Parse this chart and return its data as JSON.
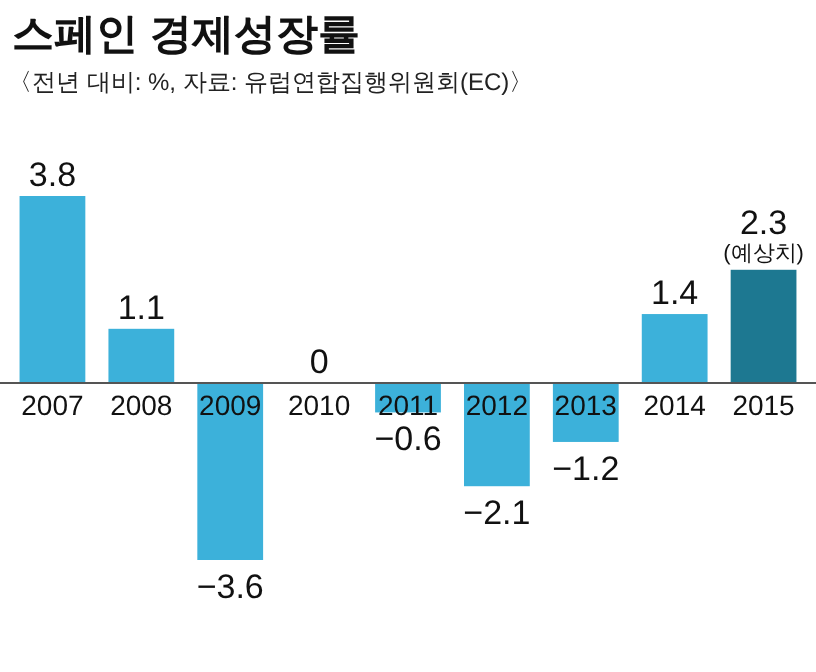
{
  "chart_data": {
    "type": "bar",
    "title": "스페인 경제성장률",
    "subtitle": "〈전년 대비: %, 자료: 유럽연합집행위원회(EC)〉",
    "categories": [
      "2007",
      "2008",
      "2009",
      "2010",
      "2011",
      "2012",
      "2013",
      "2014",
      "2015"
    ],
    "values": [
      3.8,
      1.1,
      -3.6,
      0,
      -0.6,
      -2.1,
      -1.2,
      1.4,
      2.3
    ],
    "value_labels": [
      "3.8",
      "1.1",
      "−3.6",
      "0",
      "−0.6",
      "−2.1",
      "−1.2",
      "1.4",
      "2.3"
    ],
    "colors": [
      "#3cb1da",
      "#3cb1da",
      "#3cb1da",
      "#3cb1da",
      "#3cb1da",
      "#3cb1da",
      "#3cb1da",
      "#3cb1da",
      "#1d7891"
    ],
    "annotations": [
      {
        "text": "(예상치)",
        "x": "2015",
        "y": 2.3
      }
    ]
  }
}
